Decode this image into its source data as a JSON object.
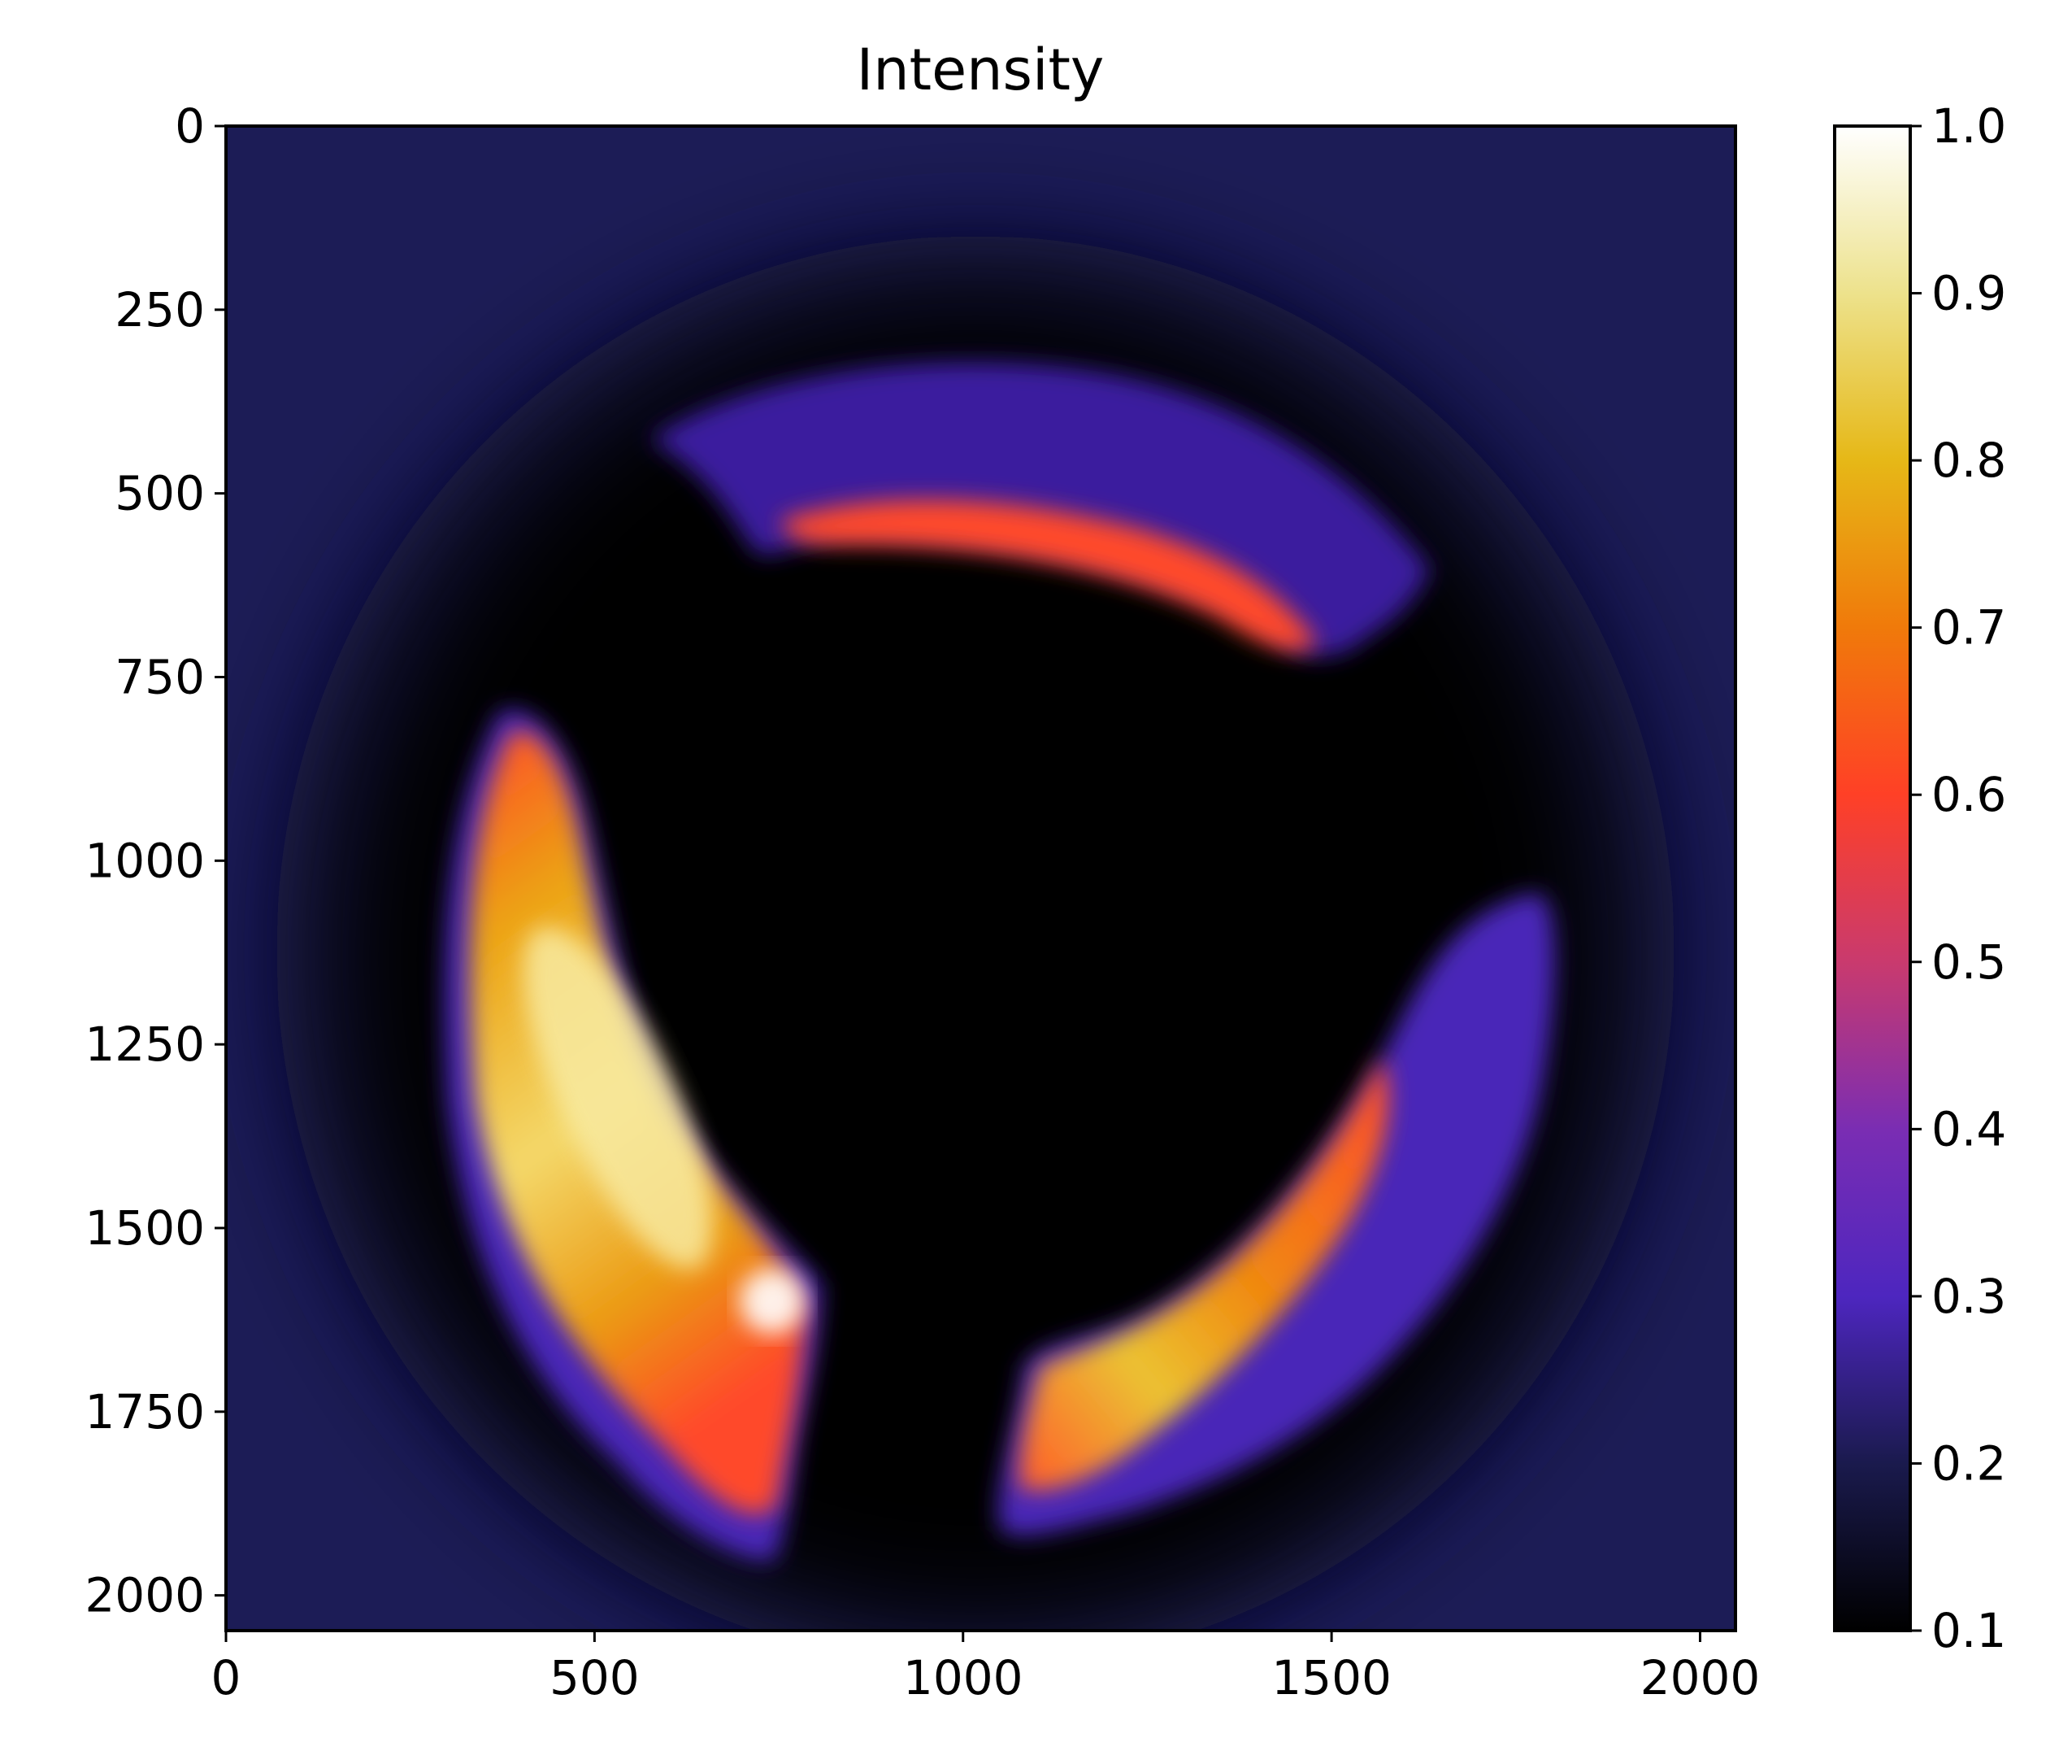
{
  "chart_data": {
    "type": "heatmap",
    "title": "Intensity",
    "xlabel": "",
    "ylabel": "",
    "xlim": [
      0,
      2048
    ],
    "ylim": [
      2048,
      0
    ],
    "x_ticks": [
      0,
      500,
      1000,
      1500,
      2000
    ],
    "y_ticks": [
      0,
      250,
      500,
      750,
      1000,
      1250,
      1500,
      1750,
      2000
    ],
    "colormap": "CMRmap",
    "colorbar": {
      "range": [
        0.1,
        1.0
      ],
      "ticks": [
        "0.1",
        "0.2",
        "0.3",
        "0.4",
        "0.5",
        "0.6",
        "0.7",
        "0.8",
        "0.9",
        "1.0"
      ],
      "stops": [
        "#000000",
        "#1a1a4d",
        "#4d26bf",
        "#a3329e",
        "#ff4026",
        "#f27211",
        "#e6a000",
        "#e6d84d",
        "#ffffff"
      ]
    },
    "background_value": 0.2,
    "center_value": 0.1,
    "features": [
      {
        "name": "top arc",
        "center": [
          1150,
          520
        ],
        "peak_value": 0.55,
        "edge_value": 0.32
      },
      {
        "name": "left arc",
        "center": [
          530,
          1300
        ],
        "peak_value": 1.0,
        "edge_value": 0.55
      },
      {
        "name": "lower-right arc",
        "center": [
          1300,
          1650
        ],
        "peak_value": 0.85,
        "edge_value": 0.35
      }
    ]
  }
}
